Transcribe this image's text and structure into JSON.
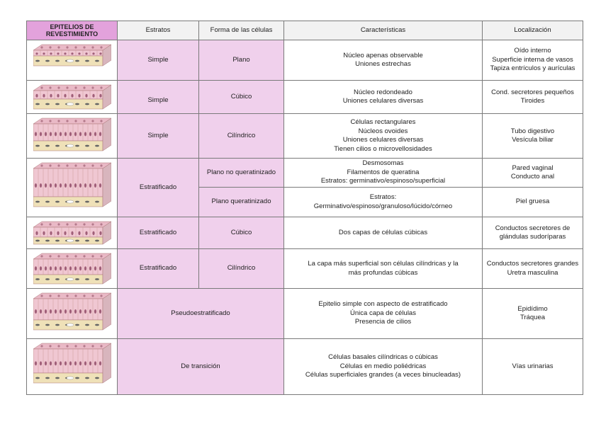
{
  "headers": {
    "title": "EPITELIOS DE REVESTIMIENTO",
    "estratos": "Estratos",
    "forma": "Forma de las células",
    "caracteristicas": "Características",
    "localizacion": "Localización"
  },
  "colors": {
    "header_accent": "#e3a2dc",
    "cell_pink": "#f0d0ec",
    "header_gray": "#f2f2f2"
  },
  "rows": [
    {
      "estratos": "Simple",
      "forma": "Plano",
      "caracteristicas": [
        "Núcleo apenas observable",
        "Uniones estrechas"
      ],
      "localizacion": [
        "Oído interno",
        "Superficie interna de vasos",
        "Tapiza entrículos y aurículas"
      ]
    },
    {
      "estratos": "Simple",
      "forma": "Cúbico",
      "caracteristicas": [
        "Núcleo redondeado",
        "Uniones celulares diversas"
      ],
      "localizacion": [
        "Cond. secretores pequeños",
        "Tiroides"
      ]
    },
    {
      "estratos": "Simple",
      "forma": "Cilíndrico",
      "caracteristicas": [
        "Células rectangulares",
        "Núcleos ovoides",
        "Uniones celulares diversas",
        "Tienen cilios o microvellosidades"
      ],
      "localizacion": [
        "Tubo digestivo",
        "Vesícula biliar"
      ]
    },
    {
      "estratos": "Estratificado",
      "forma": "Plano no queratinizado",
      "caracteristicas": [
        "Desmosomas",
        "Filamentos de queratina",
        "Estratos: germinativo/espinoso/superficial"
      ],
      "localizacion": [
        "Pared vaginal",
        "Conducto anal"
      ]
    },
    {
      "forma": "Plano queratinizado",
      "caracteristicas": [
        "Estratos:",
        "Germinativo/espinoso/granuloso/lúcido/córneo"
      ],
      "localizacion": [
        "Piel gruesa"
      ]
    },
    {
      "estratos": "Estratificado",
      "forma": "Cúbico",
      "caracteristicas": [
        "Dos capas de células cúbicas"
      ],
      "localizacion": [
        "Conductos secretores de",
        "glándulas sudoríparas"
      ]
    },
    {
      "estratos": "Estratificado",
      "forma": "Cilíndrico",
      "caracteristicas": [
        "La capa más superficial son células cilíndricas y la",
        "más profundas cúbicas"
      ],
      "localizacion": [
        "Conductos secretores grandes",
        "Uretra masculina"
      ]
    },
    {
      "estratos": "Pseudoestratificado",
      "caracteristicas": [
        "Epitelio simple con aspecto de estratificado",
        "Única capa de células",
        "Presencia de cilios"
      ],
      "localizacion": [
        "Epidídimo",
        "Tráquea"
      ]
    },
    {
      "estratos": "De transición",
      "caracteristicas": [
        "Células basales cilíndricas o cúbicas",
        "Células en medio poliédricas",
        "Células superficiales grandes (a veces binucleadas)"
      ],
      "localizacion": [
        "Vías urinarias"
      ]
    }
  ]
}
